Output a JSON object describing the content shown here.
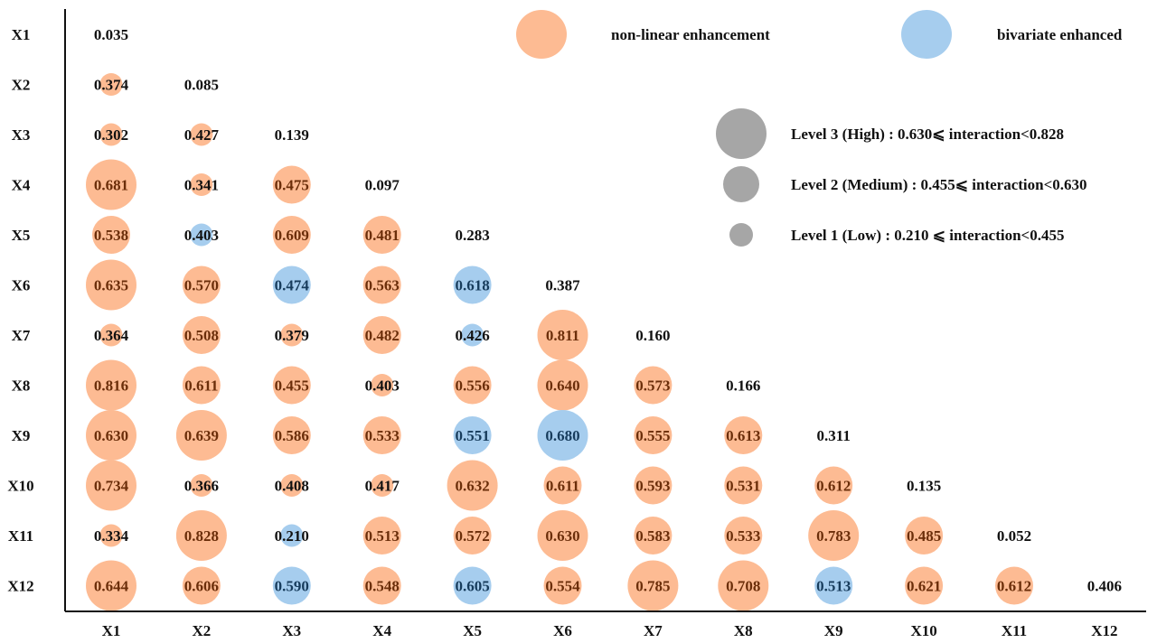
{
  "chart_data": {
    "type": "bubble-matrix",
    "title": "",
    "variables": [
      "X1",
      "X2",
      "X3",
      "X4",
      "X5",
      "X6",
      "X7",
      "X8",
      "X9",
      "X10",
      "X11",
      "X12"
    ],
    "x_tick_labels": [
      "X1",
      "X2",
      "X3",
      "X4",
      "X5",
      "X6",
      "X7",
      "X8",
      "X9",
      "X10",
      "X11",
      "X12"
    ],
    "y_tick_labels": [
      "X1",
      "X2",
      "X3",
      "X4",
      "X5",
      "X6",
      "X7",
      "X8",
      "X9",
      "X10",
      "X11",
      "X12"
    ],
    "matrix": [
      [
        "0.035"
      ],
      [
        "0.374",
        "0.085"
      ],
      [
        "0.302",
        "0.427",
        "0.139"
      ],
      [
        "0.681",
        "0.341",
        "0.475",
        "0.097"
      ],
      [
        "0.538",
        "0.403",
        "0.609",
        "0.481",
        "0.283"
      ],
      [
        "0.635",
        "0.570",
        "0.474",
        "0.563",
        "0.618",
        "0.387"
      ],
      [
        "0.364",
        "0.508",
        "0.379",
        "0.482",
        "0.426",
        "0.811",
        "0.160"
      ],
      [
        "0.816",
        "0.611",
        "0.455",
        "0.403",
        "0.556",
        "0.640",
        "0.573",
        "0.166"
      ],
      [
        "0.630",
        "0.639",
        "0.586",
        "0.533",
        "0.551",
        "0.680",
        "0.555",
        "0.613",
        "0.311"
      ],
      [
        "0.734",
        "0.366",
        "0.408",
        "0.417",
        "0.632",
        "0.611",
        "0.593",
        "0.531",
        "0.612",
        "0.135"
      ],
      [
        "0.334",
        "0.828",
        "0.210",
        "0.513",
        "0.572",
        "0.630",
        "0.583",
        "0.533",
        "0.783",
        "0.485",
        "0.052"
      ],
      [
        "0.644",
        "0.606",
        "0.590",
        "0.548",
        "0.605",
        "0.554",
        "0.785",
        "0.708",
        "0.513",
        "0.621",
        "0.612",
        "0.406"
      ]
    ],
    "interaction_type": [
      [
        "none"
      ],
      [
        "N",
        "none"
      ],
      [
        "N",
        "N",
        "none"
      ],
      [
        "N",
        "N",
        "N",
        "none"
      ],
      [
        "N",
        "B",
        "N",
        "N",
        "none"
      ],
      [
        "N",
        "N",
        "B",
        "N",
        "B",
        "none"
      ],
      [
        "N",
        "N",
        "N",
        "N",
        "B",
        "N",
        "none"
      ],
      [
        "N",
        "N",
        "N",
        "N",
        "N",
        "N",
        "N",
        "none"
      ],
      [
        "N",
        "N",
        "N",
        "N",
        "B",
        "B",
        "N",
        "N",
        "none"
      ],
      [
        "N",
        "N",
        "N",
        "N",
        "N",
        "N",
        "N",
        "N",
        "N",
        "none"
      ],
      [
        "N",
        "N",
        "B",
        "N",
        "N",
        "N",
        "N",
        "N",
        "N",
        "N",
        "none"
      ],
      [
        "N",
        "N",
        "B",
        "N",
        "B",
        "N",
        "N",
        "N",
        "B",
        "N",
        "N",
        "none"
      ]
    ],
    "series": [
      {
        "name": "non-linear enhancement",
        "code": "N",
        "color": "#fdbb93"
      },
      {
        "name": "bivariate enhanced",
        "code": "B",
        "color": "#a6cdee"
      }
    ],
    "levels": [
      {
        "name": "Level 3 (High)",
        "min": 0.63,
        "max": 0.828,
        "label": "Level 3 (High) : 0.630⩽ interaction<0.828"
      },
      {
        "name": "Level 2 (Medium)",
        "min": 0.455,
        "max": 0.63,
        "label": "Level 2 (Medium) : 0.455⩽ interaction<0.630"
      },
      {
        "name": "Level 1 (Low)",
        "min": 0.21,
        "max": 0.455,
        "label": "Level 1 (Low) : 0.210 ⩽ interaction<0.455"
      }
    ],
    "level_color": "#a6a6a6",
    "legend_placement": "top-right"
  }
}
